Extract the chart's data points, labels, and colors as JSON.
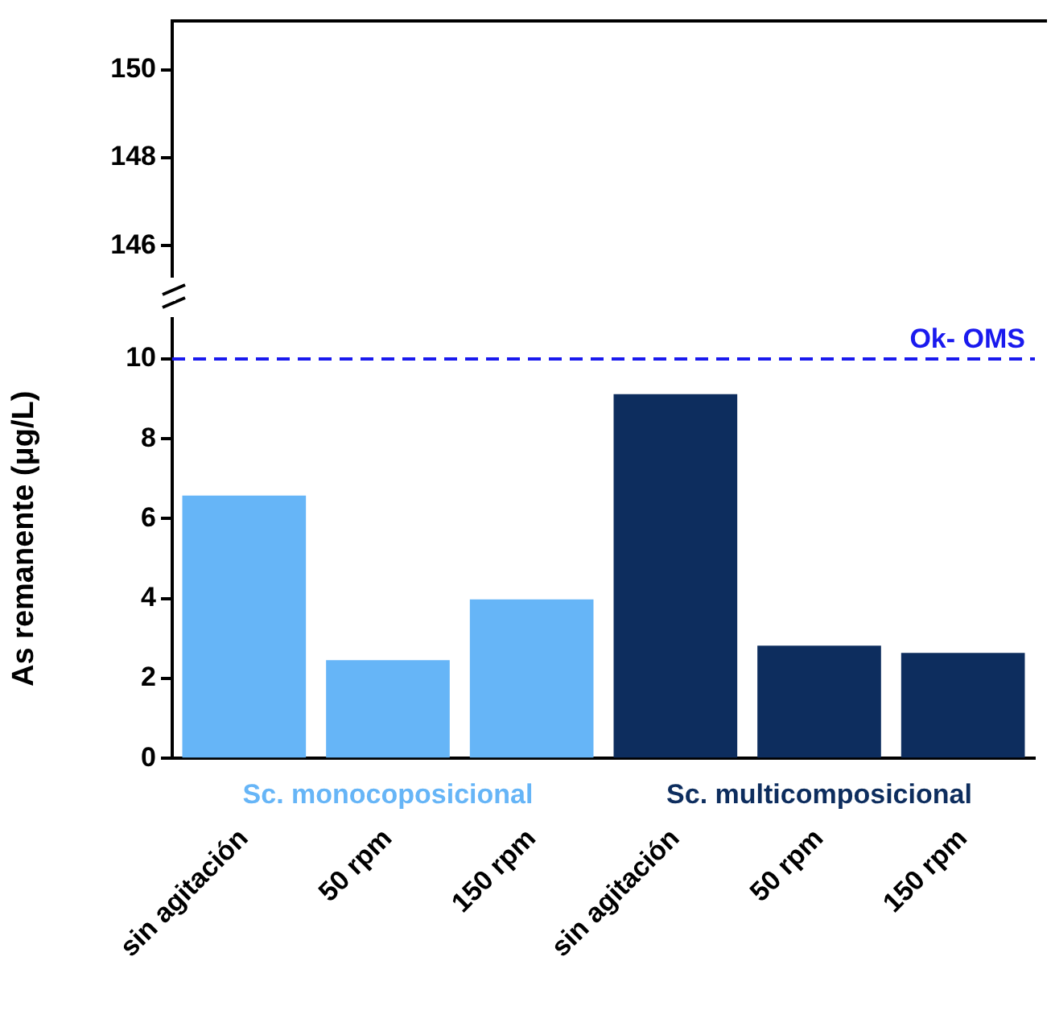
{
  "chart_data": [
    {
      "type": "bar",
      "stacked": true,
      "series": [
        {
          "color": "#66b5f7",
          "values": [
            null,
            null,
            null,
            null,
            null,
            null
          ]
        }
      ],
      "ylim": [
        145.3,
        151.1
      ],
      "yticks": [
        146,
        148,
        150
      ],
      "tick_labels": "y",
      "grid": false
    },
    {
      "type": "bar",
      "ylabel": "As remanente (μg/L)",
      "categories": [
        "sin agitación",
        "50 rpm",
        "150 rpm",
        "sin agitación",
        "50 rpm",
        "150 rpm"
      ],
      "stacked": true,
      "series": [
        {
          "name": "Sc. monocoposicional",
          "color": "#66b5f7",
          "values": [
            6.58,
            2.46,
            3.98,
            null,
            null,
            null
          ]
        },
        {
          "name": "Sc. multicomposicional",
          "color": "#0d2d5e",
          "values": [
            null,
            null,
            null,
            9.12,
            2.82,
            2.64
          ]
        }
      ],
      "ylim": [
        0,
        11
      ],
      "yticks": [
        0,
        2,
        4,
        6,
        8,
        10
      ],
      "grid": false,
      "legend": "bottom",
      "ref_lines": [
        {
          "axis": "y",
          "value": 10,
          "label": "Ok- OMS",
          "color": "#1a1aee",
          "line_style": "dashed"
        }
      ]
    }
  ]
}
